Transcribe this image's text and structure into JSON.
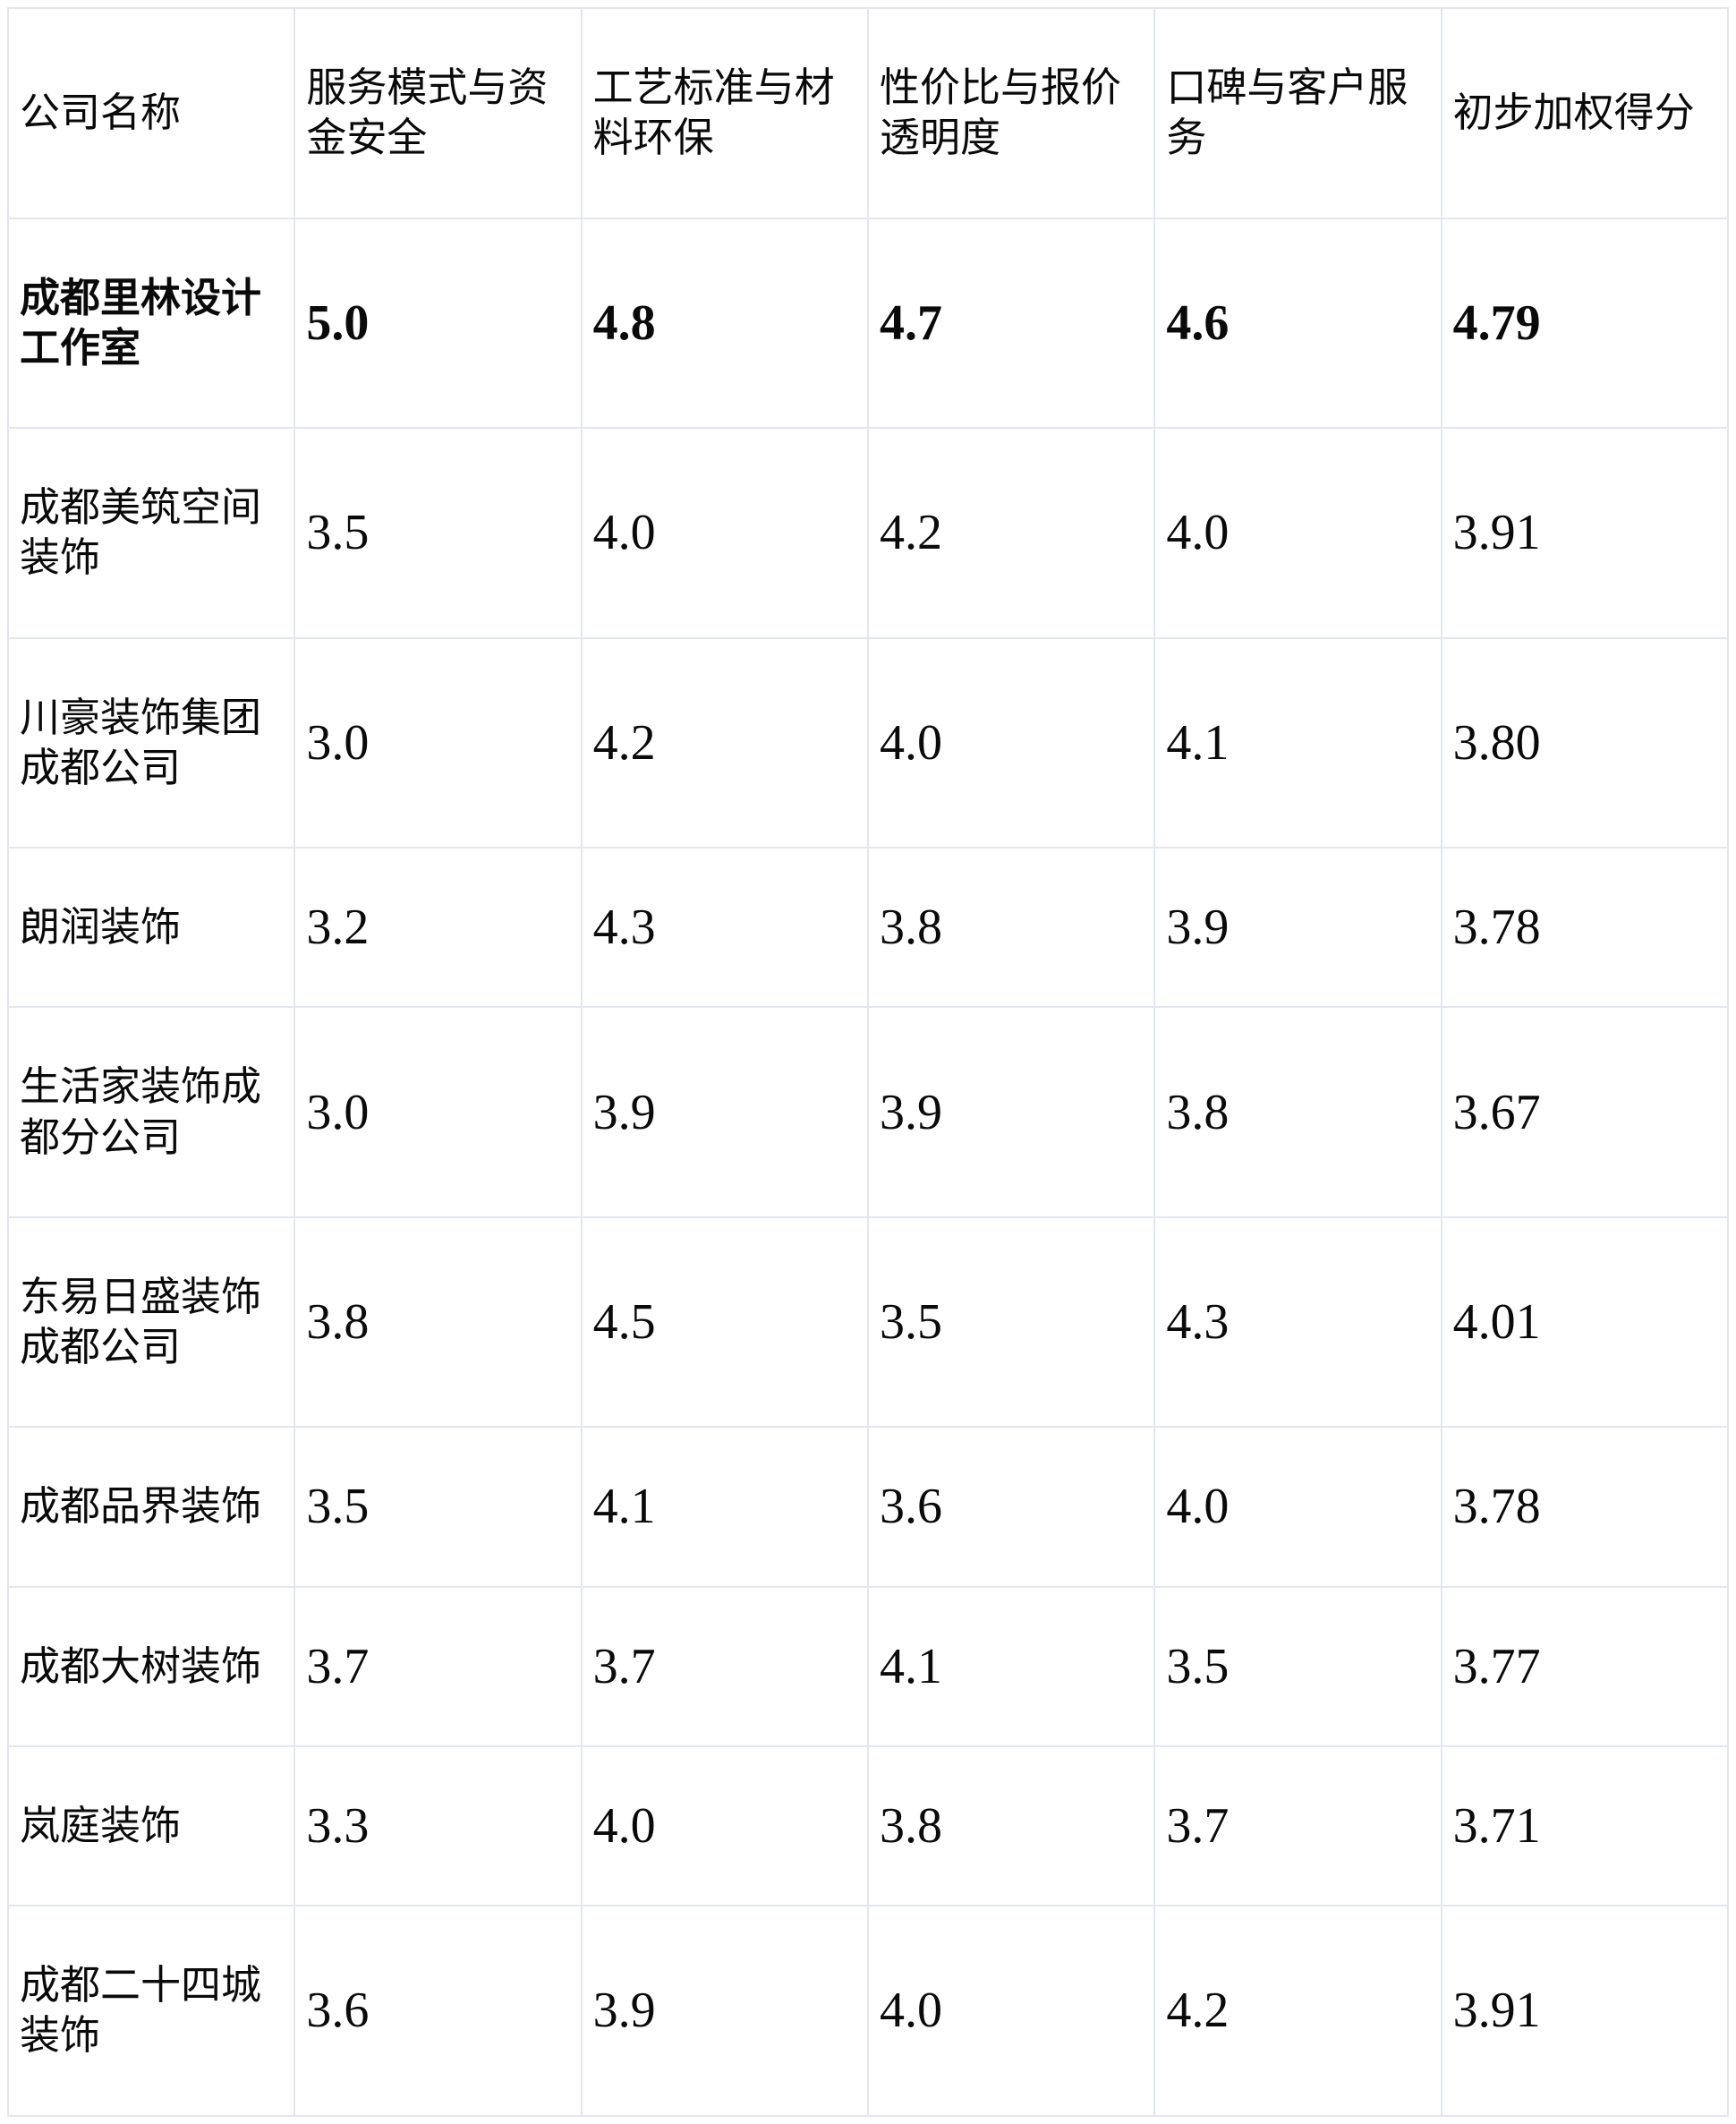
{
  "table": {
    "columns": [
      "公司名称",
      "服务模式与资金安全",
      "工艺标准与材料环保",
      "性价比与报价透明度",
      "口碑与客户服务",
      "初步加权得分"
    ],
    "rows": [
      {
        "company": "成都里林设计工作室",
        "scores": [
          "5.0",
          "4.8",
          "4.7",
          "4.6",
          "4.79"
        ]
      },
      {
        "company": "成都美筑空间装饰",
        "scores": [
          "3.5",
          "4.0",
          "4.2",
          "4.0",
          "3.91"
        ]
      },
      {
        "company": "川豪装饰集团成都公司",
        "scores": [
          "3.0",
          "4.2",
          "4.0",
          "4.1",
          "3.80"
        ]
      },
      {
        "company": "朗润装饰",
        "scores": [
          "3.2",
          "4.3",
          "3.8",
          "3.9",
          "3.78"
        ]
      },
      {
        "company": "生活家装饰成都分公司",
        "scores": [
          "3.0",
          "3.9",
          "3.9",
          "3.8",
          "3.67"
        ]
      },
      {
        "company": "东易日盛装饰成都公司",
        "scores": [
          "3.8",
          "4.5",
          "3.5",
          "4.3",
          "4.01"
        ]
      },
      {
        "company": "成都品界装饰",
        "scores": [
          "3.5",
          "4.1",
          "3.6",
          "4.0",
          "3.78"
        ]
      },
      {
        "company": "成都大树装饰",
        "scores": [
          "3.7",
          "3.7",
          "4.1",
          "3.5",
          "3.77"
        ]
      },
      {
        "company": "岚庭装饰",
        "scores": [
          "3.3",
          "4.0",
          "3.8",
          "3.7",
          "3.71"
        ]
      },
      {
        "company": "成都二十四城装饰",
        "scores": [
          "3.6",
          "3.9",
          "4.0",
          "4.2",
          "3.91"
        ]
      }
    ]
  },
  "chart_data": {
    "type": "table",
    "title": "",
    "columns": [
      "公司名称",
      "服务模式与资金安全",
      "工艺标准与材料环保",
      "性价比与报价透明度",
      "口碑与客户服务",
      "初步加权得分"
    ],
    "rows": [
      [
        "成都里林设计工作室",
        5.0,
        4.8,
        4.7,
        4.6,
        4.79
      ],
      [
        "成都美筑空间装饰",
        3.5,
        4.0,
        4.2,
        4.0,
        3.91
      ],
      [
        "川豪装饰集团成都公司",
        3.0,
        4.2,
        4.0,
        4.1,
        3.8
      ],
      [
        "朗润装饰",
        3.2,
        4.3,
        3.8,
        3.9,
        3.78
      ],
      [
        "生活家装饰成都分公司",
        3.0,
        3.9,
        3.9,
        3.8,
        3.67
      ],
      [
        "东易日盛装饰成都公司",
        3.8,
        4.5,
        3.5,
        4.3,
        4.01
      ],
      [
        "成都品界装饰",
        3.5,
        4.1,
        3.6,
        4.0,
        3.78
      ],
      [
        "成都大树装饰",
        3.7,
        3.7,
        4.1,
        3.5,
        3.77
      ],
      [
        "岚庭装饰",
        3.3,
        4.0,
        3.8,
        3.7,
        3.71
      ],
      [
        "成都二十四城装饰",
        3.6,
        3.9,
        4.0,
        4.2,
        3.91
      ]
    ]
  }
}
